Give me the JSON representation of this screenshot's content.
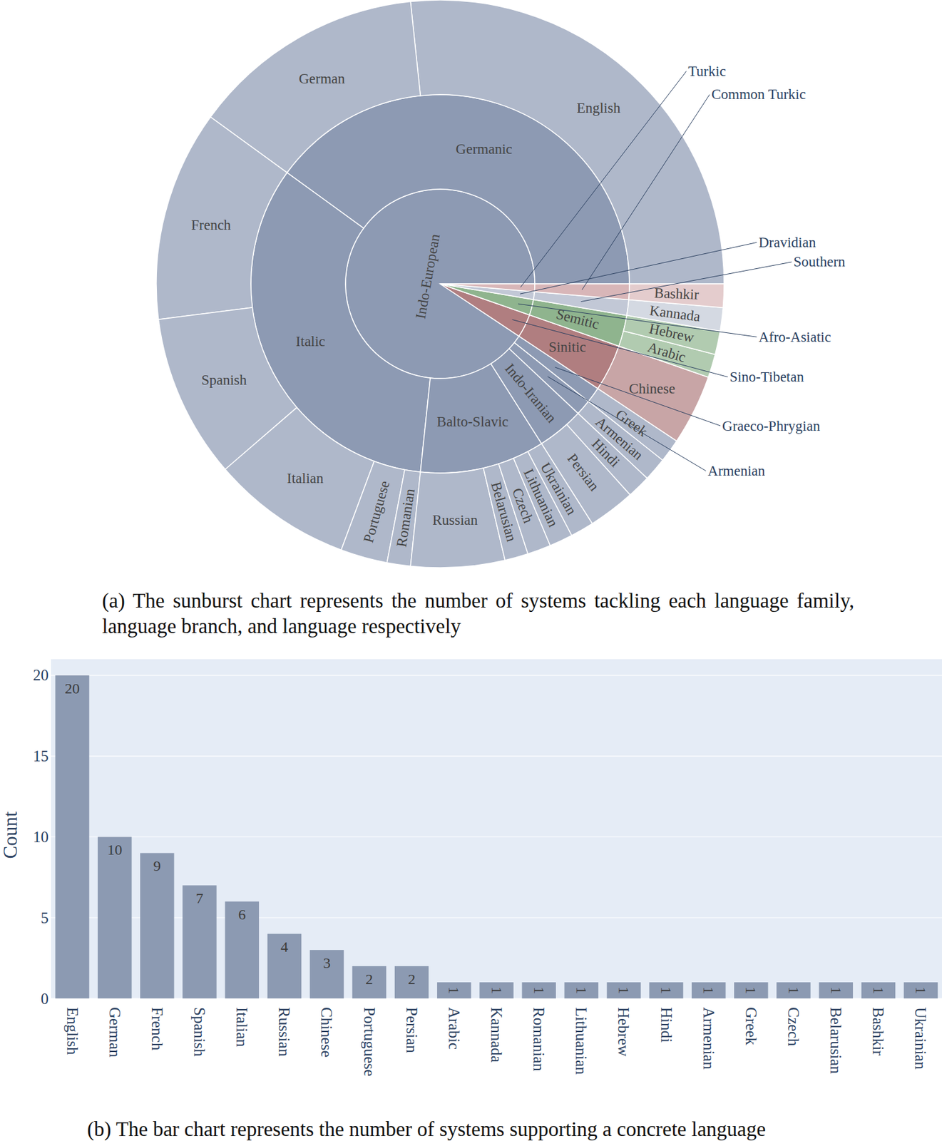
{
  "chart_data": [
    {
      "type": "sunburst",
      "caption": "(a) The sunburst chart represents the number of systems tackling each language family, language branch, and language respectively",
      "families": [
        {
          "name": "Indo-European",
          "color": "#8d9ab3",
          "branches": [
            {
              "name": "Germanic",
              "languages": [
                {
                  "name": "English",
                  "value": 20
                },
                {
                  "name": "German",
                  "value": 10
                }
              ]
            },
            {
              "name": "Italic",
              "languages": [
                {
                  "name": "French",
                  "value": 9
                },
                {
                  "name": "Spanish",
                  "value": 7
                },
                {
                  "name": "Italian",
                  "value": 6
                },
                {
                  "name": "Portuguese",
                  "value": 2
                },
                {
                  "name": "Romanian",
                  "value": 1
                }
              ]
            },
            {
              "name": "Balto-Slavic",
              "languages": [
                {
                  "name": "Russian",
                  "value": 4
                },
                {
                  "name": "Belarusian",
                  "value": 1
                },
                {
                  "name": "Czech",
                  "value": 1
                },
                {
                  "name": "Lithuanian",
                  "value": 1
                },
                {
                  "name": "Ukrainian",
                  "value": 1
                }
              ]
            },
            {
              "name": "Indo-Iranian",
              "languages": [
                {
                  "name": "Persian",
                  "value": 2
                },
                {
                  "name": "Hindi",
                  "value": 1
                }
              ]
            },
            {
              "name": "Armenian",
              "languages": [
                {
                  "name": "Armenian",
                  "value": 1
                }
              ]
            },
            {
              "name": "Graeco-Phrygian",
              "languages": [
                {
                  "name": "Greek",
                  "value": 1
                }
              ]
            }
          ]
        },
        {
          "name": "Sino-Tibetan",
          "color": "#b07e80",
          "branches": [
            {
              "name": "Sinitic",
              "languages": [
                {
                  "name": "Chinese",
                  "value": 3
                }
              ]
            }
          ]
        },
        {
          "name": "Afro-Asiatic",
          "color": "#8fb48e",
          "branches": [
            {
              "name": "Semitic",
              "languages": [
                {
                  "name": "Arabic",
                  "value": 1
                },
                {
                  "name": "Hebrew",
                  "value": 1
                }
              ]
            }
          ]
        },
        {
          "name": "Dravidian",
          "color": "#c2c8d6",
          "branches": [
            {
              "name": "Southern",
              "languages": [
                {
                  "name": "Kannada",
                  "value": 1
                }
              ]
            }
          ]
        },
        {
          "name": "Turkic",
          "color": "#d8b6b8",
          "branches": [
            {
              "name": "Common Turkic",
              "languages": [
                {
                  "name": "Bashkir",
                  "value": 1
                }
              ]
            }
          ]
        }
      ]
    },
    {
      "type": "bar",
      "caption": "(b) The bar chart represents the number of systems supporting a concrete language",
      "categories": [
        "English",
        "German",
        "French",
        "Spanish",
        "Italian",
        "Russian",
        "Chinese",
        "Portuguese",
        "Persian",
        "Arabic",
        "Kannada",
        "Romanian",
        "Lithuanian",
        "Hebrew",
        "Hindi",
        "Armenian",
        "Greek",
        "Czech",
        "Belarusian",
        "Bashkir",
        "Ukrainian"
      ],
      "values": [
        20,
        10,
        9,
        7,
        6,
        4,
        3,
        2,
        2,
        1,
        1,
        1,
        1,
        1,
        1,
        1,
        1,
        1,
        1,
        1,
        1
      ],
      "color": "#8c9ab2",
      "ylabel": "Count",
      "ylim": [
        0,
        21
      ],
      "yticks": [
        0,
        5,
        10,
        15,
        20
      ],
      "grid": true,
      "data_labels": true
    }
  ]
}
